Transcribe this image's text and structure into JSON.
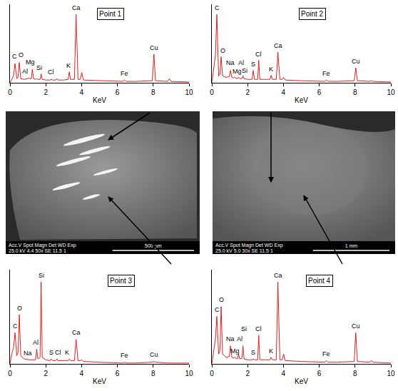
{
  "chart_data": [
    {
      "type": "line",
      "title": "Point 1",
      "x_label": "KeV",
      "color": "#e02020",
      "x": [
        0,
        0.1,
        0.2,
        0.28,
        0.38,
        0.45,
        0.52,
        0.6,
        0.8,
        0.98,
        1.04,
        1.12,
        1.19,
        1.25,
        1.32,
        1.43,
        1.49,
        1.56,
        1.68,
        1.74,
        1.8,
        2.0,
        2.25,
        2.31,
        2.38,
        2.56,
        2.62,
        2.68,
        3.0,
        3.25,
        3.31,
        3.38,
        3.6,
        3.69,
        3.8,
        3.93,
        4.01,
        4.1,
        5.0,
        6.3,
        6.4,
        6.5,
        7.0,
        7.95,
        8.04,
        8.13,
        8.8,
        8.9,
        9.0,
        10
      ],
      "values": [
        0,
        5,
        10,
        28,
        6,
        8,
        30,
        6,
        5,
        6,
        7,
        6,
        6,
        20,
        6,
        5,
        6,
        5,
        5,
        13,
        5,
        4,
        4,
        5,
        4,
        4,
        6,
        4,
        4,
        5,
        16,
        5,
        5,
        100,
        5,
        5,
        15,
        4,
        3,
        2,
        4,
        2,
        2,
        3,
        42,
        3,
        2,
        6,
        2,
        1
      ],
      "xlim": [
        0,
        10
      ],
      "xticks": [
        0,
        2,
        4,
        6,
        8,
        10
      ],
      "ylim": [
        0,
        115
      ],
      "tick_labels": "x",
      "grid": false,
      "annotations": [
        {
          "text": "C",
          "x": 0.25,
          "y": 31
        },
        {
          "text": "O",
          "x": 0.62,
          "y": 33
        },
        {
          "text": "Mg",
          "x": 1.15,
          "y": 23
        },
        {
          "text": "Al",
          "x": 0.85,
          "y": 9
        },
        {
          "text": "Si",
          "x": 1.65,
          "y": 15
        },
        {
          "text": "Cl",
          "x": 2.3,
          "y": 8
        },
        {
          "text": "K",
          "x": 3.28,
          "y": 18
        },
        {
          "text": "Ca",
          "x": 3.69,
          "y": 102
        },
        {
          "text": "Fe",
          "x": 6.4,
          "y": 6
        },
        {
          "text": "Cu",
          "x": 8.04,
          "y": 44
        }
      ]
    },
    {
      "type": "line",
      "title": "Point 2",
      "x_label": "KeV",
      "color": "#e02020",
      "x": [
        0,
        0.1,
        0.2,
        0.28,
        0.38,
        0.45,
        0.52,
        0.6,
        0.8,
        0.98,
        1.04,
        1.12,
        1.19,
        1.25,
        1.32,
        1.43,
        1.49,
        1.56,
        1.68,
        1.74,
        1.8,
        2.0,
        2.25,
        2.31,
        2.38,
        2.56,
        2.62,
        2.68,
        3.0,
        3.25,
        3.31,
        3.38,
        3.6,
        3.69,
        3.8,
        3.93,
        4.01,
        4.1,
        5.0,
        6.3,
        6.4,
        6.5,
        7.0,
        7.95,
        8.04,
        8.13,
        8.8,
        8.9,
        9.0,
        10
      ],
      "values": [
        0,
        20,
        40,
        100,
        10,
        12,
        38,
        10,
        8,
        9,
        18,
        8,
        7,
        8,
        7,
        6,
        8,
        6,
        6,
        10,
        6,
        5,
        5,
        18,
        5,
        5,
        33,
        5,
        5,
        5,
        11,
        5,
        5,
        45,
        5,
        5,
        8,
        4,
        3,
        2,
        4,
        2,
        2,
        3,
        22,
        3,
        2,
        3,
        2,
        1
      ],
      "xlim": [
        0,
        10
      ],
      "xticks": [
        0,
        2,
        4,
        6,
        8,
        10
      ],
      "ylim": [
        0,
        115
      ],
      "tick_labels": "x",
      "grid": false,
      "annotations": [
        {
          "text": "C",
          "x": 0.28,
          "y": 102
        },
        {
          "text": "O",
          "x": 0.6,
          "y": 40
        },
        {
          "text": "Na",
          "x": 1.05,
          "y": 22
        },
        {
          "text": "Mg",
          "x": 1.4,
          "y": 9
        },
        {
          "text": "Al",
          "x": 1.62,
          "y": 22
        },
        {
          "text": "Si",
          "x": 1.85,
          "y": 10
        },
        {
          "text": "S",
          "x": 2.31,
          "y": 20
        },
        {
          "text": "Cl",
          "x": 2.62,
          "y": 35
        },
        {
          "text": "K",
          "x": 3.3,
          "y": 13
        },
        {
          "text": "Ca",
          "x": 3.69,
          "y": 47
        },
        {
          "text": "Fe",
          "x": 6.4,
          "y": 6
        },
        {
          "text": "Cu",
          "x": 8.04,
          "y": 24
        }
      ]
    },
    {
      "type": "line",
      "title": "Point 3",
      "x_label": "KeV",
      "color": "#e02020",
      "x": [
        0,
        0.1,
        0.2,
        0.28,
        0.38,
        0.45,
        0.52,
        0.6,
        0.8,
        0.98,
        1.04,
        1.12,
        1.19,
        1.25,
        1.32,
        1.43,
        1.49,
        1.56,
        1.68,
        1.74,
        1.8,
        2.0,
        2.25,
        2.31,
        2.38,
        2.56,
        2.62,
        2.68,
        3.0,
        3.25,
        3.31,
        3.38,
        3.6,
        3.69,
        3.8,
        3.93,
        4.01,
        4.1,
        5.0,
        6.3,
        6.4,
        6.5,
        7.0,
        7.95,
        8.04,
        8.13,
        8.8,
        8.9,
        9.0,
        10
      ],
      "values": [
        0,
        12,
        20,
        38,
        10,
        14,
        60,
        10,
        6,
        5,
        5,
        5,
        5,
        5,
        5,
        5,
        18,
        6,
        8,
        100,
        8,
        5,
        4,
        6,
        4,
        4,
        6,
        4,
        4,
        4,
        6,
        4,
        4,
        30,
        4,
        4,
        5,
        3,
        2,
        1,
        2,
        1,
        1,
        2,
        3,
        2,
        1,
        1,
        1,
        1
      ],
      "xlim": [
        0,
        10
      ],
      "xticks": [
        0,
        2,
        4,
        6,
        8,
        10
      ],
      "ylim": [
        0,
        115
      ],
      "tick_labels": "x",
      "grid": false,
      "annotations": [
        {
          "text": "C",
          "x": 0.28,
          "y": 40
        },
        {
          "text": "O",
          "x": 0.52,
          "y": 62
        },
        {
          "text": "Na",
          "x": 1.0,
          "y": 7
        },
        {
          "text": "Al",
          "x": 1.42,
          "y": 20
        },
        {
          "text": "Si",
          "x": 1.74,
          "y": 102
        },
        {
          "text": "S",
          "x": 2.3,
          "y": 8
        },
        {
          "text": "Cl",
          "x": 2.7,
          "y": 8
        },
        {
          "text": "K",
          "x": 3.2,
          "y": 8
        },
        {
          "text": "Ca",
          "x": 3.69,
          "y": 32
        },
        {
          "text": "Fe",
          "x": 6.4,
          "y": 4
        },
        {
          "text": "Cu",
          "x": 8.04,
          "y": 5
        }
      ]
    },
    {
      "type": "line",
      "title": "Point 4",
      "x_label": "KeV",
      "color": "#e02020",
      "x": [
        0,
        0.1,
        0.2,
        0.28,
        0.38,
        0.45,
        0.52,
        0.6,
        0.8,
        0.98,
        1.04,
        1.12,
        1.19,
        1.25,
        1.32,
        1.43,
        1.49,
        1.56,
        1.68,
        1.74,
        1.8,
        2.0,
        2.25,
        2.31,
        2.38,
        2.56,
        2.62,
        2.68,
        3.0,
        3.25,
        3.31,
        3.38,
        3.6,
        3.69,
        3.8,
        3.93,
        4.01,
        4.1,
        5.0,
        6.3,
        6.4,
        6.5,
        7.0,
        7.95,
        8.04,
        8.13,
        8.8,
        8.9,
        9.0,
        10
      ],
      "values": [
        0,
        15,
        30,
        58,
        12,
        16,
        70,
        12,
        8,
        9,
        22,
        8,
        7,
        8,
        7,
        6,
        12,
        6,
        7,
        22,
        6,
        5,
        5,
        6,
        5,
        5,
        35,
        5,
        5,
        5,
        8,
        5,
        5,
        100,
        5,
        5,
        12,
        4,
        3,
        2,
        4,
        2,
        2,
        3,
        38,
        3,
        2,
        4,
        2,
        1
      ],
      "xlim": [
        0,
        10
      ],
      "xticks": [
        0,
        2,
        4,
        6,
        8,
        10
      ],
      "ylim": [
        0,
        115
      ],
      "tick_labels": "x",
      "grid": false,
      "annotations": [
        {
          "text": "C",
          "x": 0.28,
          "y": 60
        },
        {
          "text": "O",
          "x": 0.55,
          "y": 72
        },
        {
          "text": "Na",
          "x": 1.05,
          "y": 24
        },
        {
          "text": "Mg",
          "x": 1.3,
          "y": 10
        },
        {
          "text": "Al",
          "x": 1.55,
          "y": 24
        },
        {
          "text": "Si",
          "x": 1.8,
          "y": 37
        },
        {
          "text": "S",
          "x": 2.31,
          "y": 8
        },
        {
          "text": "Cl",
          "x": 2.62,
          "y": 37
        },
        {
          "text": "K",
          "x": 3.3,
          "y": 10
        },
        {
          "text": "Ca",
          "x": 3.69,
          "y": 102
        },
        {
          "text": "Fe",
          "x": 6.4,
          "y": 6
        },
        {
          "text": "Cu",
          "x": 8.04,
          "y": 40
        }
      ]
    }
  ],
  "images": [
    {
      "info_header": "Acc.V  Spot  Magn   Det  WD  Exp",
      "info_values": "25.0 kV  4.4   50x    SE  11.5  1",
      "scale_bar": "500 µm"
    },
    {
      "info_header": "Acc.V  Spot  Magn   Det  WD  Exp",
      "info_values": "25.0 kV  5.0   30x    SE  11.5  1",
      "scale_bar": "1 mm"
    }
  ]
}
